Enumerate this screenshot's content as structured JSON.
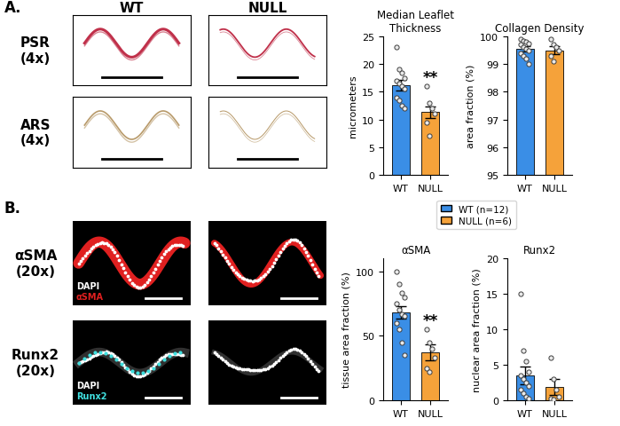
{
  "panel_labels": [
    "A.",
    "B."
  ],
  "image_columns": [
    "WT",
    "NULL"
  ],
  "image_rows": [
    {
      "panel": "A",
      "label": "PSR\n(4x)",
      "color": "#c0304a",
      "channels": []
    },
    {
      "panel": "A",
      "label": "ARS\n(4x)",
      "color": "#b89a6a",
      "channels": []
    },
    {
      "panel": "B",
      "label": "αSMA\n(20x)",
      "color": "#e02020",
      "channels": [
        {
          "text": "DAPI",
          "color": "#ffffff"
        },
        {
          "text": "αSMA",
          "color": "#e02020"
        }
      ]
    },
    {
      "panel": "B",
      "label": "Runx2\n(20x)",
      "color": "#40e0e0",
      "channels": [
        {
          "text": "DAPI",
          "color": "#ffffff"
        },
        {
          "text": "Runx2",
          "color": "#40e0e0"
        }
      ]
    }
  ],
  "key": {
    "entries": [
      {
        "name": "WT (n=12)",
        "color": "#3a8ee6"
      },
      {
        "name": "NULL (n=6)",
        "color": "#f5a23a"
      }
    ]
  },
  "chart_data": [
    {
      "type": "bar",
      "title": "Median Leaflet\nThickness",
      "y_label": "micrometers",
      "categories": [
        "WT",
        "NULL"
      ],
      "values": [
        16.2,
        11.3
      ],
      "errors": [
        1.0,
        1.0
      ],
      "points": [
        [
          23,
          19,
          18.5,
          17.5,
          17,
          16.5,
          16,
          15.5,
          14,
          13.5,
          12.5,
          12
        ],
        [
          16,
          13,
          12,
          11,
          9.5,
          7
        ]
      ],
      "colors": [
        "#3a8ee6",
        "#f5a23a"
      ],
      "ylim": [
        0,
        25
      ],
      "yticks": [
        0,
        5,
        10,
        15,
        20,
        25
      ],
      "annotations": [
        {
          "category": "NULL",
          "text": "**"
        }
      ]
    },
    {
      "type": "bar",
      "title": "Collagen Density",
      "y_label": "area fraction (%)",
      "categories": [
        "WT",
        "NULL"
      ],
      "values": [
        99.55,
        99.5
      ],
      "errors": [
        0.1,
        0.15
      ],
      "points": [
        [
          99.9,
          99.85,
          99.8,
          99.75,
          99.7,
          99.6,
          99.55,
          99.5,
          99.4,
          99.3,
          99.2,
          99.0
        ],
        [
          99.9,
          99.7,
          99.6,
          99.5,
          99.3,
          99.1
        ]
      ],
      "colors": [
        "#3a8ee6",
        "#f5a23a"
      ],
      "ylim": [
        95,
        100
      ],
      "yticks": [
        95,
        96,
        97,
        98,
        99,
        100
      ]
    },
    {
      "type": "bar",
      "title": "αSMA",
      "y_label": "tissue area fraction (%)",
      "categories": [
        "WT",
        "NULL"
      ],
      "values": [
        68,
        37
      ],
      "errors": [
        5,
        6
      ],
      "points": [
        [
          100,
          90,
          83,
          80,
          75,
          70,
          67,
          65,
          60,
          55,
          45,
          35
        ],
        [
          55,
          45,
          40,
          33,
          25,
          22
        ]
      ],
      "colors": [
        "#3a8ee6",
        "#f5a23a"
      ],
      "ylim": [
        0,
        110
      ],
      "yticks": [
        0,
        50,
        100
      ],
      "annotations": [
        {
          "category": "NULL",
          "text": "**"
        }
      ]
    },
    {
      "type": "bar",
      "title": "Runx2",
      "y_label": "nuclear area fraction (%)",
      "categories": [
        "WT",
        "NULL"
      ],
      "values": [
        3.5,
        1.9
      ],
      "errors": [
        1.3,
        1.1
      ],
      "points": [
        [
          15,
          7,
          5.5,
          4,
          3.5,
          3,
          2.5,
          2,
          1.5,
          1,
          0.5,
          0.3
        ],
        [
          6,
          3,
          1.5,
          0.5,
          0.3,
          0.1
        ]
      ],
      "colors": [
        "#3a8ee6",
        "#f5a23a"
      ],
      "ylim": [
        0,
        20
      ],
      "yticks": [
        0,
        5,
        10,
        15,
        20
      ]
    }
  ]
}
